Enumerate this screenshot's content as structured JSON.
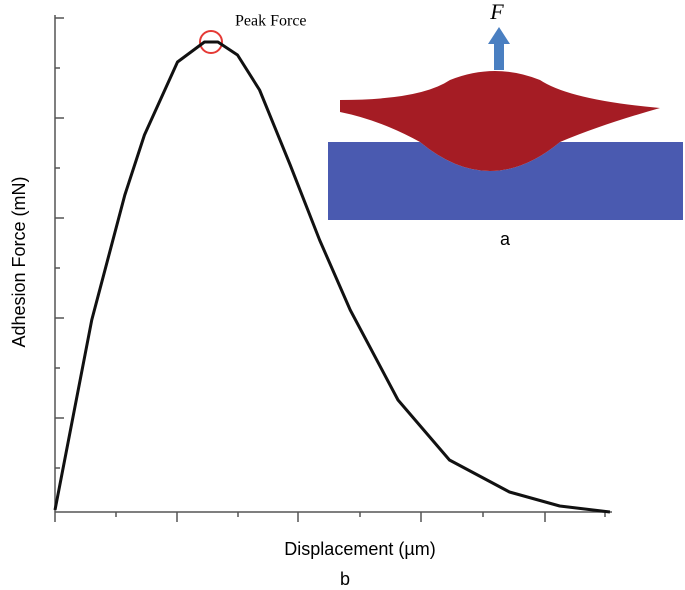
{
  "chart_data": {
    "type": "line",
    "xlabel": "Displacement (µm)",
    "ylabel": "Adhesion Force (mN)",
    "annotation": "Peak Force",
    "inset_force_label": "F",
    "inset_label": "a",
    "panel_label": "b",
    "x": [
      0,
      0.3,
      0.57,
      0.73,
      1.0,
      1.22,
      1.33,
      1.49,
      1.67,
      1.92,
      2.16,
      2.41,
      2.8,
      3.22,
      3.71,
      4.12,
      4.53
    ],
    "series": [
      {
        "name": "Adhesion Force",
        "color": "#111111",
        "values": [
          0.02,
          1.92,
          3.17,
          3.77,
          4.5,
          4.7,
          4.7,
          4.57,
          4.22,
          3.47,
          2.72,
          2.02,
          1.12,
          0.52,
          0.2,
          0.06,
          0
        ]
      }
    ],
    "xlim": [
      0,
      5
    ],
    "ylim": [
      0,
      5
    ]
  }
}
